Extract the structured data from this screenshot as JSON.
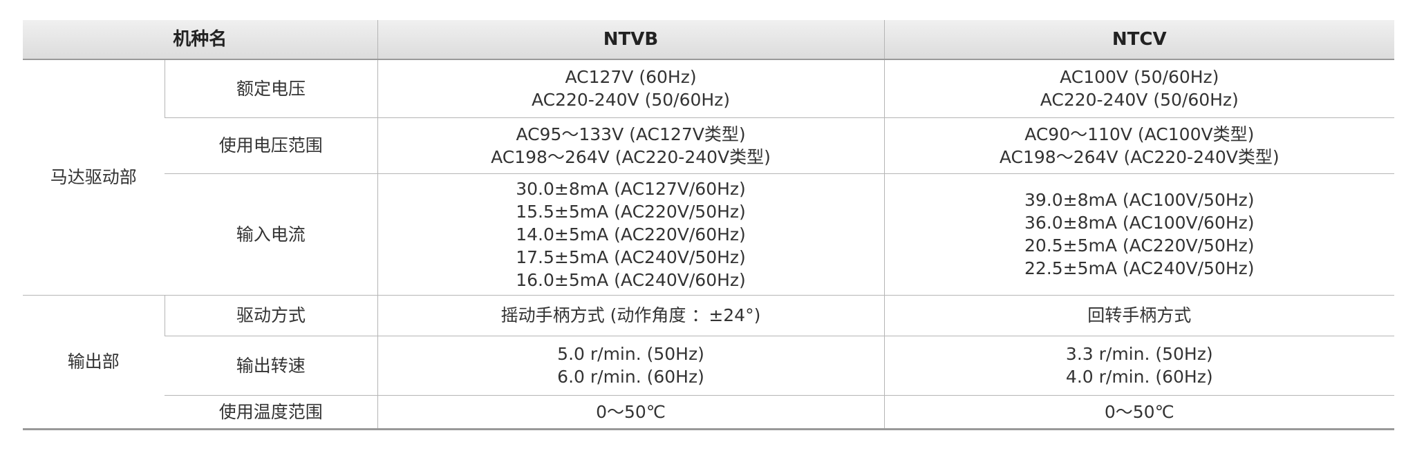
{
  "header": {
    "model_name": "机种名",
    "models": [
      "NTVB",
      "NTCV"
    ]
  },
  "groups": [
    {
      "label": "马达驱动部",
      "rows": [
        {
          "item": "额定电压",
          "values": [
            [
              "AC127V (60Hz)",
              "AC220-240V (50/60Hz)"
            ],
            [
              "AC100V (50/60Hz)",
              "AC220-240V (50/60Hz)"
            ]
          ]
        },
        {
          "item": "使用电压范围",
          "values": [
            [
              "AC95～133V (AC127V类型)",
              "AC198～264V (AC220-240V类型)"
            ],
            [
              "AC90～110V (AC100V类型)",
              "AC198～264V (AC220-240V类型)"
            ]
          ]
        },
        {
          "item": "输入电流",
          "values": [
            [
              "30.0±8mA (AC127V/60Hz)",
              "15.5±5mA (AC220V/50Hz)",
              "14.0±5mA (AC220V/60Hz)",
              "17.5±5mA (AC240V/50Hz)",
              "16.0±5mA (AC240V/60Hz)"
            ],
            [
              "39.0±8mA (AC100V/50Hz)",
              "36.0±8mA (AC100V/60Hz)",
              "20.5±5mA (AC220V/50Hz)",
              "22.5±5mA (AC240V/50Hz)"
            ]
          ]
        }
      ]
    },
    {
      "label": "输出部",
      "rows": [
        {
          "item": "驱动方式",
          "values": [
            [
              "摇动手柄方式 (动作角度 ：±24°)"
            ],
            [
              "回转手柄方式"
            ]
          ]
        },
        {
          "item": "输出转速",
          "values": [
            [
              "5.0 r/min. (50Hz)",
              "6.0 r/min. (60Hz)"
            ],
            [
              "3.3 r/min. (50Hz)",
              "4.0 r/min. (60Hz)"
            ]
          ]
        },
        {
          "item": "使用温度范围",
          "values": [
            [
              "0～50℃"
            ],
            [
              "0～50℃"
            ]
          ]
        }
      ]
    }
  ]
}
